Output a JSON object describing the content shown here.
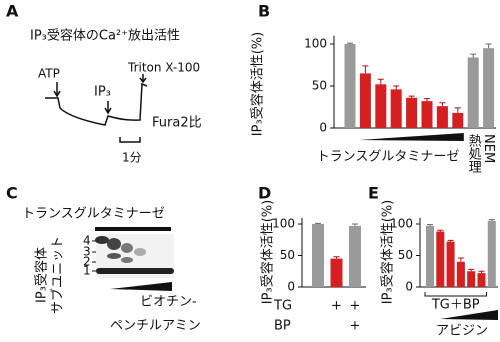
{
  "figure_labels": [
    "A",
    "B",
    "C",
    "D",
    "E"
  ],
  "panel_a": {
    "title": "IP₃受容体のCa²⁺放出活性",
    "labels": [
      "ATP",
      "IP₃",
      "Triton X-100"
    ],
    "trace_label": "Fura2比",
    "scale_label": "1分"
  },
  "panel_c": {
    "title": "トランスグルタミナーゼ",
    "ylabel": [
      "IP₃受容体",
      "サブユニット"
    ],
    "ticks": [
      "4",
      "3",
      "2",
      "1"
    ],
    "xlabel": [
      "ビオチン-",
      "ペンチルアミン"
    ]
  },
  "chart_data": [
    {
      "type": "bar",
      "ylabel": "IP₃受容体活性(%)",
      "xlabel": "トランスグルタミナーゼ",
      "categories": [
        null,
        null,
        null,
        null,
        null,
        null,
        null,
        null,
        "熱処理",
        "NEM"
      ],
      "values": [
        100,
        65,
        52,
        46,
        36,
        32,
        26,
        18,
        84,
        95
      ],
      "errors": [
        1,
        9,
        6,
        4,
        2,
        3,
        4,
        6,
        4,
        5
      ],
      "colors": [
        "#9a9a9a",
        "#d42020",
        "#d42020",
        "#d42020",
        "#d42020",
        "#d42020",
        "#d42020",
        "#d42020",
        "#9a9a9a",
        "#9a9a9a"
      ],
      "ylim": [
        0,
        110
      ],
      "yticks": [
        0,
        50,
        100
      ]
    },
    {
      "type": "bar",
      "ylabel": "IP₃受容体活性(%)",
      "values": [
        100,
        45,
        97
      ],
      "errors": [
        1,
        3,
        3
      ],
      "colors": [
        "#9a9a9a",
        "#d42020",
        "#9a9a9a"
      ],
      "ylim": [
        0,
        110
      ],
      "yticks": [
        0,
        50,
        100
      ],
      "rows": [
        {
          "label": "TG",
          "marks": [
            null,
            "+",
            "+"
          ]
        },
        {
          "label": "BP",
          "marks": [
            null,
            null,
            "+"
          ]
        }
      ]
    },
    {
      "type": "bar",
      "ylabel": "IP₃受容体活性(%)",
      "bracket_label": "TG＋BP",
      "xlabel": "アビジン",
      "values": [
        97,
        88,
        72,
        40,
        25,
        22,
        105
      ],
      "errors": [
        2,
        2,
        2,
        6,
        3,
        3,
        2
      ],
      "colors": [
        "#9a9a9a",
        "#d42020",
        "#d42020",
        "#d42020",
        "#d42020",
        "#d42020",
        "#9a9a9a"
      ],
      "ylim": [
        0,
        110
      ],
      "yticks": [
        0,
        50,
        100
      ]
    }
  ]
}
